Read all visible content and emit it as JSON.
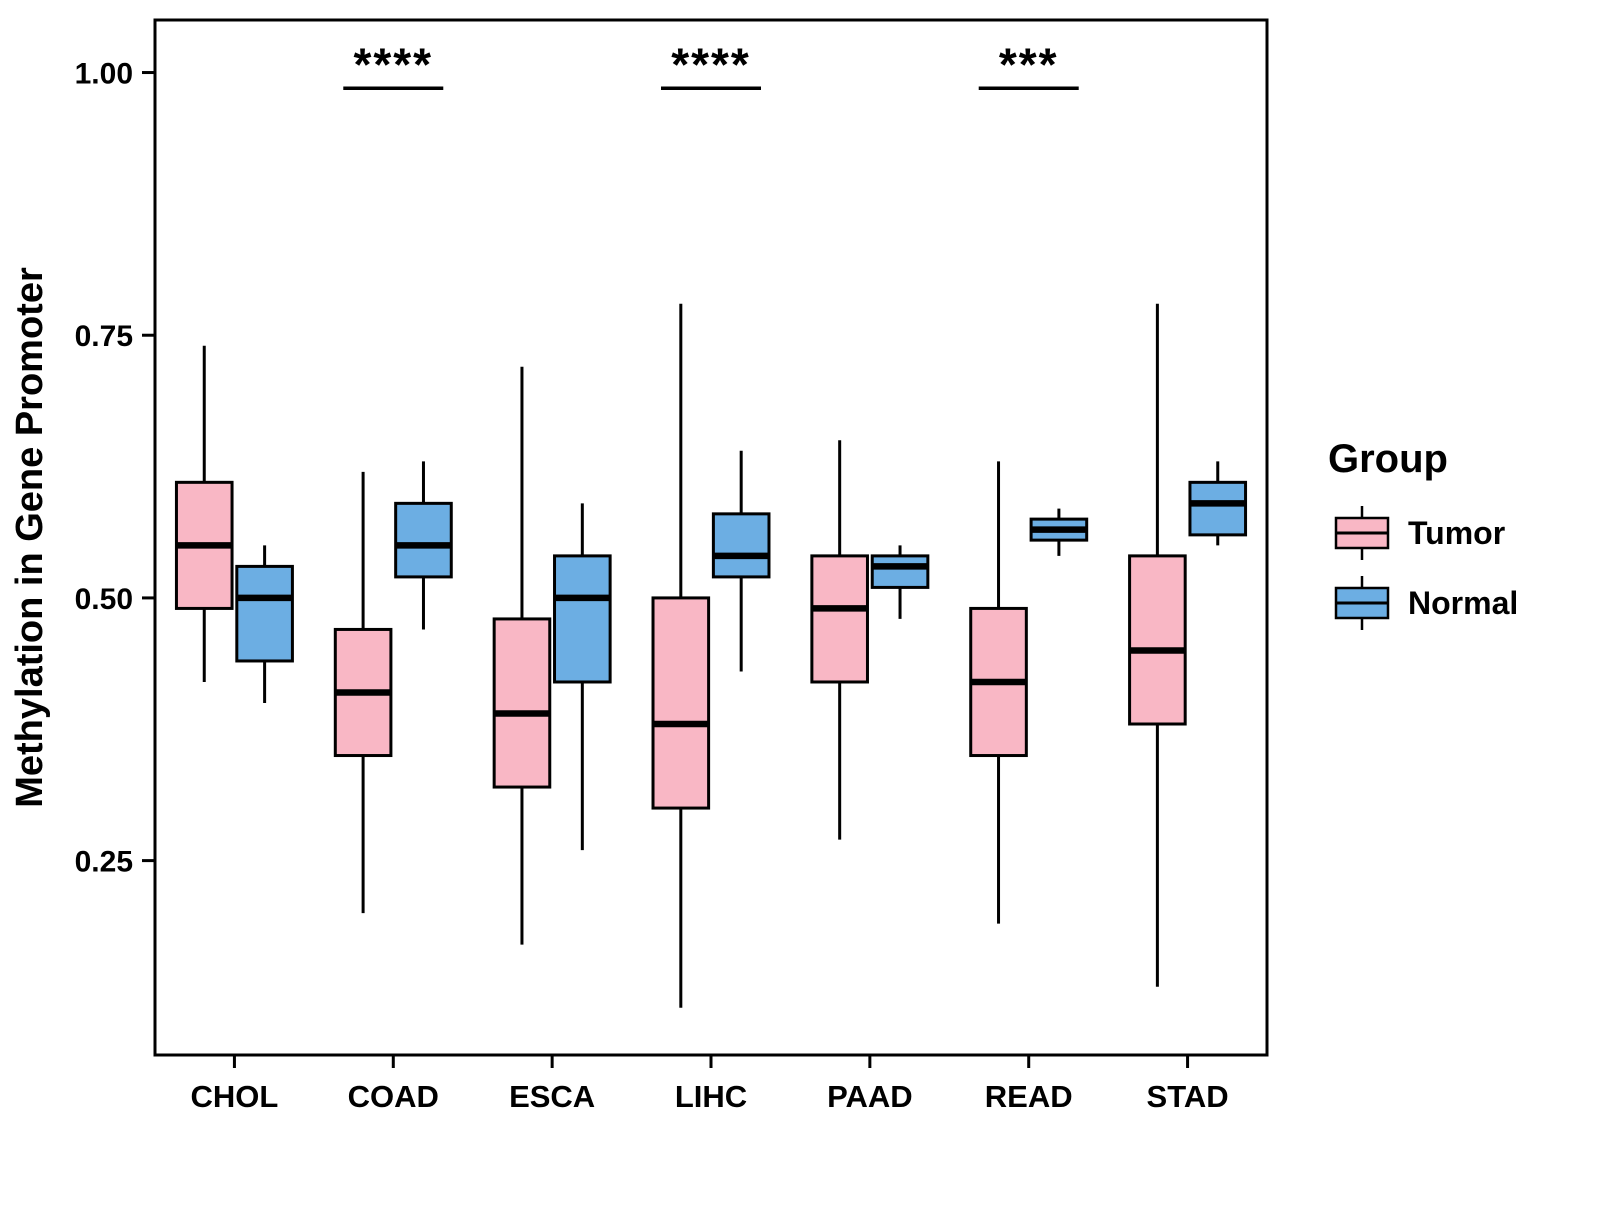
{
  "chart_data": {
    "type": "boxplot",
    "title": "",
    "xlabel": "",
    "ylabel": "Methylation in Gene Promoter",
    "ylim": [
      0.065,
      1.05
    ],
    "yticks": [
      1.0,
      0.75,
      0.5,
      0.25
    ],
    "ytick_labels": [
      "1.00",
      "0.75",
      "0.50",
      "0.25"
    ],
    "grid": false,
    "categories": [
      "CHOL",
      "COAD",
      "ESCA",
      "LIHC",
      "PAAD",
      "READ",
      "STAD"
    ],
    "legend": {
      "title": "Group",
      "position": "right"
    },
    "series": [
      {
        "name": "Tumor",
        "color": "#F9B7C5",
        "boxes": [
          {
            "low": 0.42,
            "q1": 0.49,
            "median": 0.55,
            "q3": 0.61,
            "high": 0.74
          },
          {
            "low": 0.2,
            "q1": 0.35,
            "median": 0.41,
            "q3": 0.47,
            "high": 0.62
          },
          {
            "low": 0.17,
            "q1": 0.32,
            "median": 0.39,
            "q3": 0.48,
            "high": 0.72
          },
          {
            "low": 0.11,
            "q1": 0.3,
            "median": 0.38,
            "q3": 0.5,
            "high": 0.78
          },
          {
            "low": 0.27,
            "q1": 0.42,
            "median": 0.49,
            "q3": 0.54,
            "high": 0.65
          },
          {
            "low": 0.19,
            "q1": 0.35,
            "median": 0.42,
            "q3": 0.49,
            "high": 0.63
          },
          {
            "low": 0.13,
            "q1": 0.38,
            "median": 0.45,
            "q3": 0.54,
            "high": 0.78
          }
        ]
      },
      {
        "name": "Normal",
        "color": "#6CAEE3",
        "boxes": [
          {
            "low": 0.4,
            "q1": 0.44,
            "median": 0.5,
            "q3": 0.53,
            "high": 0.55
          },
          {
            "low": 0.47,
            "q1": 0.52,
            "median": 0.55,
            "q3": 0.59,
            "high": 0.63
          },
          {
            "low": 0.26,
            "q1": 0.42,
            "median": 0.5,
            "q3": 0.54,
            "high": 0.59
          },
          {
            "low": 0.43,
            "q1": 0.52,
            "median": 0.54,
            "q3": 0.58,
            "high": 0.64
          },
          {
            "low": 0.48,
            "q1": 0.51,
            "median": 0.53,
            "q3": 0.54,
            "high": 0.55
          },
          {
            "low": 0.54,
            "q1": 0.555,
            "median": 0.565,
            "q3": 0.575,
            "high": 0.585
          },
          {
            "low": 0.55,
            "q1": 0.56,
            "median": 0.59,
            "q3": 0.61,
            "high": 0.63
          }
        ]
      }
    ],
    "significance": [
      {
        "category": "COAD",
        "label": "****",
        "bar_y": 0.985
      },
      {
        "category": "LIHC",
        "label": "****",
        "bar_y": 0.985
      },
      {
        "category": "READ",
        "label": "***",
        "bar_y": 0.985
      }
    ]
  }
}
